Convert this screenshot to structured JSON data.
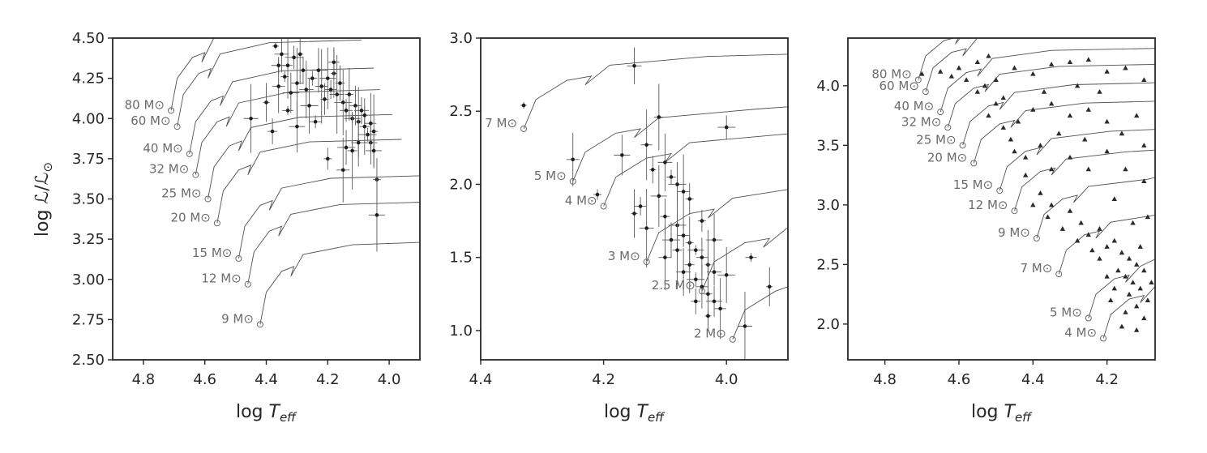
{
  "chart_data": [
    {
      "type": "scatter",
      "panel": "left",
      "xlabel": "log T_eff",
      "ylabel": "log L/L_sun",
      "xlim": [
        4.9,
        3.9
      ],
      "ylim": [
        2.5,
        4.5
      ],
      "xticks": [
        "4.8",
        "4.6",
        "4.4",
        "4.2",
        "4.0"
      ],
      "yticks": [
        "2.50",
        "2.75",
        "3.00",
        "3.25",
        "3.50",
        "3.75",
        "4.00",
        "4.25",
        "4.50"
      ],
      "marker": "point-with-errorbars",
      "grid": false,
      "tracks": [
        {
          "label": "80 M⊙",
          "x": 4.71,
          "y": 4.05
        },
        {
          "label": "60 M⊙",
          "x": 4.69,
          "y": 3.95
        },
        {
          "label": "40 M⊙",
          "x": 4.65,
          "y": 3.78
        },
        {
          "label": "32 M⊙",
          "x": 4.63,
          "y": 3.65
        },
        {
          "label": "25 M⊙",
          "x": 4.59,
          "y": 3.5
        },
        {
          "label": "20 M⊙",
          "x": 4.56,
          "y": 3.35
        },
        {
          "label": "15 M⊙",
          "x": 4.49,
          "y": 3.13
        },
        {
          "label": "12 M⊙",
          "x": 4.46,
          "y": 2.97
        },
        {
          "label": "9 M⊙",
          "x": 4.42,
          "y": 2.72
        }
      ],
      "points": [
        {
          "x": 4.37,
          "y": 4.45
        },
        {
          "x": 4.35,
          "y": 4.4
        },
        {
          "x": 4.33,
          "y": 4.33
        },
        {
          "x": 4.31,
          "y": 4.38
        },
        {
          "x": 4.36,
          "y": 4.2
        },
        {
          "x": 4.34,
          "y": 4.26
        },
        {
          "x": 4.32,
          "y": 4.16
        },
        {
          "x": 4.3,
          "y": 4.22
        },
        {
          "x": 4.28,
          "y": 4.3
        },
        {
          "x": 4.27,
          "y": 4.18
        },
        {
          "x": 4.25,
          "y": 4.25
        },
        {
          "x": 4.23,
          "y": 4.3
        },
        {
          "x": 4.22,
          "y": 4.2
        },
        {
          "x": 4.21,
          "y": 4.12
        },
        {
          "x": 4.2,
          "y": 4.25
        },
        {
          "x": 4.19,
          "y": 4.18
        },
        {
          "x": 4.18,
          "y": 4.28
        },
        {
          "x": 4.17,
          "y": 4.15
        },
        {
          "x": 4.16,
          "y": 4.22
        },
        {
          "x": 4.15,
          "y": 4.1
        },
        {
          "x": 4.14,
          "y": 4.05
        },
        {
          "x": 4.13,
          "y": 4.15
        },
        {
          "x": 4.12,
          "y": 4.0
        },
        {
          "x": 4.11,
          "y": 4.08
        },
        {
          "x": 4.1,
          "y": 3.98
        },
        {
          "x": 4.09,
          "y": 4.05
        },
        {
          "x": 4.08,
          "y": 3.95
        },
        {
          "x": 4.07,
          "y": 3.9
        },
        {
          "x": 4.06,
          "y": 3.85
        },
        {
          "x": 4.05,
          "y": 3.92
        },
        {
          "x": 4.05,
          "y": 3.8
        },
        {
          "x": 4.06,
          "y": 3.97
        },
        {
          "x": 4.08,
          "y": 4.02
        },
        {
          "x": 4.1,
          "y": 3.85
        },
        {
          "x": 4.12,
          "y": 3.8
        },
        {
          "x": 4.14,
          "y": 3.82
        },
        {
          "x": 4.15,
          "y": 3.68
        },
        {
          "x": 4.2,
          "y": 3.75
        },
        {
          "x": 4.3,
          "y": 3.95
        },
        {
          "x": 4.33,
          "y": 4.05
        },
        {
          "x": 4.4,
          "y": 4.1
        },
        {
          "x": 4.45,
          "y": 4.0
        },
        {
          "x": 4.38,
          "y": 3.92
        },
        {
          "x": 4.26,
          "y": 4.08
        },
        {
          "x": 4.24,
          "y": 3.98
        },
        {
          "x": 4.04,
          "y": 3.62
        },
        {
          "x": 4.04,
          "y": 3.4
        },
        {
          "x": 4.18,
          "y": 4.35
        },
        {
          "x": 4.29,
          "y": 4.4
        },
        {
          "x": 4.36,
          "y": 4.33
        }
      ]
    },
    {
      "type": "scatter",
      "panel": "middle",
      "xlabel": "log T_eff",
      "xlim": [
        4.4,
        3.9
      ],
      "ylim": [
        0.8,
        3.0
      ],
      "xticks": [
        "4.4",
        "4.2",
        "4.0"
      ],
      "yticks": [
        "1.0",
        "1.5",
        "2.0",
        "2.5",
        "3.0"
      ],
      "marker": "point-with-errorbars",
      "grid": false,
      "tracks": [
        {
          "label": "7 M⊙",
          "x": 4.33,
          "y": 2.38
        },
        {
          "label": "5 M⊙",
          "x": 4.25,
          "y": 2.02
        },
        {
          "label": "4 M⊙",
          "x": 4.2,
          "y": 1.85
        },
        {
          "label": "3 M⊙",
          "x": 4.13,
          "y": 1.47
        },
        {
          "label": "2.5 M⊙",
          "x": 4.04,
          "y": 1.27
        },
        {
          "label": "2 M⊙",
          "x": 3.99,
          "y": 0.94
        }
      ],
      "points": [
        {
          "x": 4.33,
          "y": 2.54
        },
        {
          "x": 4.15,
          "y": 2.81
        },
        {
          "x": 4.11,
          "y": 2.46
        },
        {
          "x": 4.0,
          "y": 2.39
        },
        {
          "x": 4.25,
          "y": 2.17
        },
        {
          "x": 4.21,
          "y": 1.93
        },
        {
          "x": 4.17,
          "y": 2.2
        },
        {
          "x": 4.13,
          "y": 2.27
        },
        {
          "x": 4.12,
          "y": 2.1
        },
        {
          "x": 4.1,
          "y": 2.15
        },
        {
          "x": 4.09,
          "y": 2.05
        },
        {
          "x": 4.08,
          "y": 2.0
        },
        {
          "x": 4.07,
          "y": 1.95
        },
        {
          "x": 4.06,
          "y": 1.9
        },
        {
          "x": 4.11,
          "y": 1.92
        },
        {
          "x": 4.14,
          "y": 1.85
        },
        {
          "x": 4.15,
          "y": 1.8
        },
        {
          "x": 4.13,
          "y": 1.7
        },
        {
          "x": 4.1,
          "y": 1.78
        },
        {
          "x": 4.08,
          "y": 1.72
        },
        {
          "x": 4.07,
          "y": 1.65
        },
        {
          "x": 4.06,
          "y": 1.6
        },
        {
          "x": 4.05,
          "y": 1.55
        },
        {
          "x": 4.04,
          "y": 1.5
        },
        {
          "x": 4.03,
          "y": 1.45
        },
        {
          "x": 4.02,
          "y": 1.4
        },
        {
          "x": 4.06,
          "y": 1.45
        },
        {
          "x": 4.05,
          "y": 1.35
        },
        {
          "x": 4.04,
          "y": 1.3
        },
        {
          "x": 4.03,
          "y": 1.25
        },
        {
          "x": 4.02,
          "y": 1.2
        },
        {
          "x": 4.01,
          "y": 1.15
        },
        {
          "x": 4.03,
          "y": 1.1
        },
        {
          "x": 4.07,
          "y": 1.4
        },
        {
          "x": 4.08,
          "y": 1.55
        },
        {
          "x": 4.09,
          "y": 1.62
        },
        {
          "x": 4.1,
          "y": 1.5
        },
        {
          "x": 4.04,
          "y": 1.75
        },
        {
          "x": 4.02,
          "y": 1.62
        },
        {
          "x": 3.96,
          "y": 1.5
        },
        {
          "x": 3.93,
          "y": 1.3
        },
        {
          "x": 3.97,
          "y": 1.03
        },
        {
          "x": 4.05,
          "y": 1.2
        },
        {
          "x": 4.0,
          "y": 1.38
        }
      ]
    },
    {
      "type": "scatter",
      "panel": "right",
      "xlabel": "log T_eff",
      "xlim": [
        4.9,
        4.07
      ],
      "ylim": [
        1.7,
        4.4
      ],
      "xticks": [
        "4.8",
        "4.6",
        "4.4",
        "4.2"
      ],
      "yticks": [
        "2.0",
        "2.5",
        "3.0",
        "3.5",
        "4.0"
      ],
      "marker": "triangle",
      "grid": false,
      "tracks": [
        {
          "label": "80 M⊙",
          "x": 4.71,
          "y": 4.05
        },
        {
          "label": "60 M⊙",
          "x": 4.69,
          "y": 3.95
        },
        {
          "label": "40 M⊙",
          "x": 4.65,
          "y": 3.78
        },
        {
          "label": "32 M⊙",
          "x": 4.63,
          "y": 3.65
        },
        {
          "label": "25 M⊙",
          "x": 4.59,
          "y": 3.5
        },
        {
          "label": "20 M⊙",
          "x": 4.56,
          "y": 3.35
        },
        {
          "label": "15 M⊙",
          "x": 4.49,
          "y": 3.12
        },
        {
          "label": "12 M⊙",
          "x": 4.45,
          "y": 2.95
        },
        {
          "label": "9 M⊙",
          "x": 4.39,
          "y": 2.72
        },
        {
          "label": "7 M⊙",
          "x": 4.33,
          "y": 2.42
        },
        {
          "label": "5 M⊙",
          "x": 4.25,
          "y": 2.05
        },
        {
          "label": "4 M⊙",
          "x": 4.21,
          "y": 1.88
        }
      ],
      "points": [
        {
          "x": 4.7,
          "y": 4.1
        },
        {
          "x": 4.65,
          "y": 4.12
        },
        {
          "x": 4.6,
          "y": 4.15
        },
        {
          "x": 4.55,
          "y": 4.2
        },
        {
          "x": 4.52,
          "y": 4.25
        },
        {
          "x": 4.58,
          "y": 4.05
        },
        {
          "x": 4.55,
          "y": 3.95
        },
        {
          "x": 4.5,
          "y": 4.05
        },
        {
          "x": 4.48,
          "y": 3.9
        },
        {
          "x": 4.45,
          "y": 4.15
        },
        {
          "x": 4.4,
          "y": 4.1
        },
        {
          "x": 4.35,
          "y": 4.18
        },
        {
          "x": 4.3,
          "y": 4.2
        },
        {
          "x": 4.25,
          "y": 4.22
        },
        {
          "x": 4.2,
          "y": 4.12
        },
        {
          "x": 4.15,
          "y": 4.15
        },
        {
          "x": 4.1,
          "y": 4.05
        },
        {
          "x": 4.52,
          "y": 3.75
        },
        {
          "x": 4.48,
          "y": 3.65
        },
        {
          "x": 4.44,
          "y": 3.7
        },
        {
          "x": 4.4,
          "y": 3.8
        },
        {
          "x": 4.35,
          "y": 3.85
        },
        {
          "x": 4.3,
          "y": 3.75
        },
        {
          "x": 4.25,
          "y": 3.8
        },
        {
          "x": 4.2,
          "y": 3.7
        },
        {
          "x": 4.12,
          "y": 3.75
        },
        {
          "x": 4.45,
          "y": 3.45
        },
        {
          "x": 4.42,
          "y": 3.4
        },
        {
          "x": 4.38,
          "y": 3.5
        },
        {
          "x": 4.35,
          "y": 3.3
        },
        {
          "x": 4.3,
          "y": 3.4
        },
        {
          "x": 4.25,
          "y": 3.3
        },
        {
          "x": 4.2,
          "y": 3.45
        },
        {
          "x": 4.15,
          "y": 3.3
        },
        {
          "x": 4.1,
          "y": 3.5
        },
        {
          "x": 4.38,
          "y": 3.1
        },
        {
          "x": 4.35,
          "y": 3.0
        },
        {
          "x": 4.3,
          "y": 2.95
        },
        {
          "x": 4.27,
          "y": 2.85
        },
        {
          "x": 4.25,
          "y": 2.75
        },
        {
          "x": 4.22,
          "y": 2.8
        },
        {
          "x": 4.2,
          "y": 2.65
        },
        {
          "x": 4.18,
          "y": 2.7
        },
        {
          "x": 4.16,
          "y": 2.6
        },
        {
          "x": 4.14,
          "y": 2.55
        },
        {
          "x": 4.12,
          "y": 2.5
        },
        {
          "x": 4.1,
          "y": 2.45
        },
        {
          "x": 4.17,
          "y": 2.45
        },
        {
          "x": 4.15,
          "y": 2.4
        },
        {
          "x": 4.13,
          "y": 2.35
        },
        {
          "x": 4.11,
          "y": 2.3
        },
        {
          "x": 4.09,
          "y": 2.2
        },
        {
          "x": 4.14,
          "y": 2.25
        },
        {
          "x": 4.12,
          "y": 2.15
        },
        {
          "x": 4.1,
          "y": 2.05
        },
        {
          "x": 4.15,
          "y": 2.1
        },
        {
          "x": 4.18,
          "y": 2.3
        },
        {
          "x": 4.2,
          "y": 2.4
        },
        {
          "x": 4.22,
          "y": 2.55
        },
        {
          "x": 4.24,
          "y": 2.62
        },
        {
          "x": 4.28,
          "y": 2.7
        },
        {
          "x": 4.32,
          "y": 2.8
        },
        {
          "x": 4.36,
          "y": 2.9
        },
        {
          "x": 4.4,
          "y": 3.0
        },
        {
          "x": 4.42,
          "y": 3.25
        },
        {
          "x": 4.46,
          "y": 3.55
        },
        {
          "x": 4.5,
          "y": 3.85
        },
        {
          "x": 4.53,
          "y": 4.0
        },
        {
          "x": 4.62,
          "y": 4.08
        },
        {
          "x": 4.18,
          "y": 3.05
        },
        {
          "x": 4.13,
          "y": 2.85
        },
        {
          "x": 4.11,
          "y": 2.65
        },
        {
          "x": 4.1,
          "y": 3.2
        },
        {
          "x": 4.09,
          "y": 2.9
        },
        {
          "x": 4.26,
          "y": 3.55
        },
        {
          "x": 4.33,
          "y": 3.6
        },
        {
          "x": 4.28,
          "y": 4.0
        },
        {
          "x": 4.37,
          "y": 3.95
        },
        {
          "x": 4.22,
          "y": 3.95
        },
        {
          "x": 4.16,
          "y": 3.6
        },
        {
          "x": 4.19,
          "y": 2.2
        },
        {
          "x": 4.16,
          "y": 1.98
        },
        {
          "x": 4.12,
          "y": 1.95
        },
        {
          "x": 4.08,
          "y": 2.35
        }
      ]
    }
  ]
}
